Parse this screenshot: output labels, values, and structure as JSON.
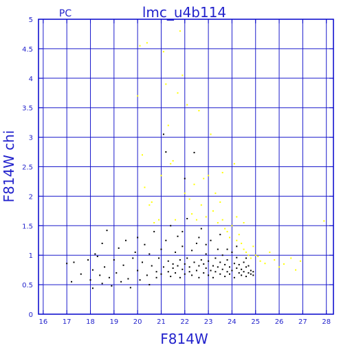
{
  "header": {
    "corner_label": "PC",
    "title": "lmc_u4b114"
  },
  "colors": {
    "frame": "#0000cc",
    "grid": "#1a1acc",
    "text": "#2222cc",
    "black_points": "#000000",
    "yellow_points": "#ffff00"
  },
  "chart_data": {
    "type": "scatter",
    "title": "lmc_u4b114",
    "xlabel": "F814W",
    "ylabel": "F814W  chi",
    "xlim": [
      15.8,
      28.3
    ],
    "ylim": [
      0,
      5
    ],
    "x_ticks": [
      16,
      17,
      18,
      19,
      20,
      21,
      22,
      23,
      24,
      25,
      26,
      27,
      28
    ],
    "x_tick_labels": [
      "16",
      "17",
      "18",
      "19",
      "20",
      "21",
      "22",
      "23",
      "24",
      "25",
      "26",
      "27",
      "28"
    ],
    "y_ticks": [
      0,
      0.5,
      1,
      1.5,
      2,
      2.5,
      3,
      3.5,
      4,
      4.5,
      5
    ],
    "y_tick_labels": [
      "0",
      "0.5",
      "1",
      "1.5",
      "2",
      "2.5",
      "3",
      "3.5",
      "4",
      "4.5",
      "5"
    ],
    "grid": true,
    "series": [
      {
        "color": "#000000",
        "points": [
          [
            17.0,
            0.86
          ],
          [
            17.3,
            0.88
          ],
          [
            17.2,
            0.55
          ],
          [
            17.6,
            0.68
          ],
          [
            17.9,
            0.92
          ],
          [
            18.0,
            0.58
          ],
          [
            18.1,
            0.75
          ],
          [
            18.1,
            0.44
          ],
          [
            18.2,
            1.02
          ],
          [
            18.3,
            0.98
          ],
          [
            18.4,
            0.66
          ],
          [
            18.5,
            1.2
          ],
          [
            18.5,
            0.52
          ],
          [
            18.6,
            0.8
          ],
          [
            18.7,
            1.42
          ],
          [
            18.8,
            0.62
          ],
          [
            18.9,
            0.48
          ],
          [
            19.0,
            0.92
          ],
          [
            19.1,
            0.7
          ],
          [
            19.2,
            1.12
          ],
          [
            19.3,
            0.55
          ],
          [
            19.4,
            0.83
          ],
          [
            19.5,
            1.25
          ],
          [
            19.6,
            0.6
          ],
          [
            19.7,
            0.45
          ],
          [
            19.8,
            0.95
          ],
          [
            19.9,
            1.05
          ],
          [
            20.0,
            0.74
          ],
          [
            20.0,
            1.3
          ],
          [
            20.1,
            0.58
          ],
          [
            20.2,
            0.88
          ],
          [
            20.3,
            1.18
          ],
          [
            20.4,
            0.66
          ],
          [
            20.5,
            1.02
          ],
          [
            20.5,
            0.5
          ],
          [
            20.6,
            0.82
          ],
          [
            20.7,
            1.4
          ],
          [
            20.8,
            0.72
          ],
          [
            20.8,
            0.62
          ],
          [
            20.9,
            0.95
          ],
          [
            21.0,
            1.1
          ],
          [
            21.0,
            0.68
          ],
          [
            21.1,
            3.05
          ],
          [
            21.1,
            0.8
          ],
          [
            21.2,
            2.75
          ],
          [
            21.2,
            1.25
          ],
          [
            21.3,
            0.72
          ],
          [
            21.3,
            0.9
          ],
          [
            21.4,
            0.64
          ],
          [
            21.4,
            1.5
          ],
          [
            21.5,
            0.78
          ],
          [
            21.5,
            0.85
          ],
          [
            21.6,
            1.05
          ],
          [
            21.6,
            0.7
          ],
          [
            21.7,
            0.82
          ],
          [
            21.7,
            1.32
          ],
          [
            21.8,
            0.62
          ],
          [
            21.8,
            0.92
          ],
          [
            21.9,
            0.76
          ],
          [
            21.9,
            1.15
          ],
          [
            22.0,
            2.3
          ],
          [
            22.0,
            0.85
          ],
          [
            22.0,
            0.68
          ],
          [
            22.1,
            0.95
          ],
          [
            22.1,
            1.62
          ],
          [
            22.2,
            0.72
          ],
          [
            22.2,
            0.8
          ],
          [
            22.3,
            1.08
          ],
          [
            22.3,
            0.66
          ],
          [
            22.4,
            2.74
          ],
          [
            22.4,
            0.88
          ],
          [
            22.5,
            0.74
          ],
          [
            22.5,
            1.2
          ],
          [
            22.6,
            0.82
          ],
          [
            22.6,
            0.62
          ],
          [
            22.7,
            0.92
          ],
          [
            22.7,
            1.45
          ],
          [
            22.8,
            0.7
          ],
          [
            22.8,
            0.85
          ],
          [
            22.9,
            0.78
          ],
          [
            22.9,
            1.02
          ],
          [
            23.0,
            0.66
          ],
          [
            23.0,
            0.9
          ],
          [
            23.1,
            0.74
          ],
          [
            23.1,
            1.25
          ],
          [
            23.2,
            0.82
          ],
          [
            23.2,
            0.62
          ],
          [
            23.3,
            0.95
          ],
          [
            23.3,
            0.72
          ],
          [
            23.4,
            1.1
          ],
          [
            23.4,
            0.8
          ],
          [
            23.5,
            0.68
          ],
          [
            23.5,
            0.88
          ],
          [
            23.6,
            0.76
          ],
          [
            23.6,
            1.0
          ],
          [
            23.7,
            0.64
          ],
          [
            23.7,
            0.84
          ],
          [
            23.8,
            0.72
          ],
          [
            23.8,
            0.92
          ],
          [
            23.9,
            0.8
          ],
          [
            23.9,
            0.68
          ],
          [
            24.0,
            1.05
          ],
          [
            24.0,
            0.74
          ],
          [
            24.1,
            0.86
          ],
          [
            24.1,
            0.62
          ],
          [
            24.2,
            0.78
          ],
          [
            24.2,
            0.96
          ],
          [
            24.3,
            0.7
          ],
          [
            24.3,
            0.84
          ],
          [
            24.4,
            0.66
          ],
          [
            24.4,
            0.76
          ],
          [
            24.5,
            0.88
          ],
          [
            24.5,
            0.72
          ],
          [
            24.6,
            0.64
          ],
          [
            24.6,
            0.8
          ],
          [
            24.7,
            0.7
          ],
          [
            24.7,
            0.82
          ],
          [
            24.8,
            0.68
          ],
          [
            24.8,
            0.74
          ],
          [
            24.9,
            0.66
          ],
          [
            24.9,
            0.72
          ],
          [
            24.2,
            1.15
          ],
          [
            23.5,
            1.35
          ],
          [
            22.9,
            1.18
          ],
          [
            21.9,
            1.4
          ],
          [
            22.6,
            1.3
          ],
          [
            23.8,
            1.1
          ],
          [
            24.6,
            0.95
          ]
        ]
      },
      {
        "color": "#ffff00",
        "points": [
          [
            20.0,
            3.7
          ],
          [
            20.1,
            4.55
          ],
          [
            20.2,
            2.7
          ],
          [
            20.3,
            2.15
          ],
          [
            20.4,
            4.6
          ],
          [
            20.5,
            1.85
          ],
          [
            20.6,
            1.9
          ],
          [
            20.7,
            1.55
          ],
          [
            20.9,
            1.6
          ],
          [
            21.0,
            2.35
          ],
          [
            21.1,
            4.45
          ],
          [
            21.2,
            3.9
          ],
          [
            21.3,
            3.2
          ],
          [
            21.4,
            2.55
          ],
          [
            21.5,
            2.6
          ],
          [
            21.6,
            1.6
          ],
          [
            21.7,
            3.75
          ],
          [
            21.8,
            4.8
          ],
          [
            21.9,
            4.05
          ],
          [
            22.0,
            2.05
          ],
          [
            22.1,
            3.55
          ],
          [
            22.2,
            1.95
          ],
          [
            22.3,
            1.7
          ],
          [
            22.4,
            2.2
          ],
          [
            22.5,
            1.6
          ],
          [
            22.6,
            3.45
          ],
          [
            22.7,
            1.85
          ],
          [
            22.8,
            2.3
          ],
          [
            22.9,
            1.65
          ],
          [
            23.0,
            2.35
          ],
          [
            23.1,
            3.05
          ],
          [
            23.2,
            1.75
          ],
          [
            23.3,
            2.05
          ],
          [
            23.4,
            1.55
          ],
          [
            23.5,
            1.9
          ],
          [
            23.6,
            1.6
          ],
          [
            23.7,
            1.45
          ],
          [
            23.8,
            1.4
          ],
          [
            23.9,
            1.3
          ],
          [
            24.0,
            1.5
          ],
          [
            24.1,
            2.55
          ],
          [
            24.2,
            1.25
          ],
          [
            24.3,
            1.35
          ],
          [
            24.4,
            1.2
          ],
          [
            24.5,
            1.1
          ],
          [
            24.6,
            1.05
          ],
          [
            24.7,
            1.0
          ],
          [
            24.8,
            0.95
          ],
          [
            24.9,
            1.15
          ],
          [
            25.0,
            1.0
          ],
          [
            25.1,
            0.98
          ],
          [
            25.2,
            0.9
          ],
          [
            25.4,
            0.86
          ],
          [
            25.6,
            1.05
          ],
          [
            25.8,
            0.92
          ],
          [
            26.0,
            0.8
          ],
          [
            26.2,
            0.85
          ],
          [
            26.5,
            0.95
          ],
          [
            26.7,
            0.75
          ],
          [
            26.9,
            0.9
          ],
          [
            27.9,
            1.58
          ],
          [
            24.5,
            1.55
          ],
          [
            24.2,
            1.65
          ],
          [
            23.6,
            2.4
          ]
        ]
      }
    ]
  }
}
